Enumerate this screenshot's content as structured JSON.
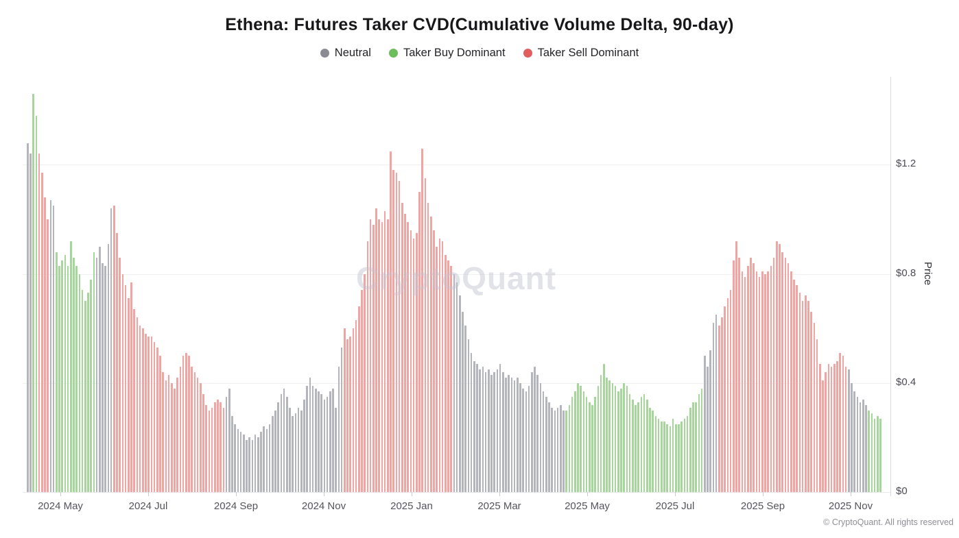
{
  "header": {
    "title": "Ethena: Futures Taker CVD(Cumulative Volume Delta, 90-day)"
  },
  "watermark": "CryptoQuant",
  "footer": {
    "copyright": "© CryptoQuant. All rights reserved"
  },
  "chart_data": {
    "type": "bar",
    "title": "Ethena: Futures Taker CVD(Cumulative Volume Delta, 90-day)",
    "xlabel": "",
    "ylabel": "Price",
    "ylim": [
      0,
      1.55
    ],
    "grid": true,
    "legend_position": "top",
    "legend": [
      {
        "key": "neutral",
        "label": "Neutral",
        "color": "#8b8b94"
      },
      {
        "key": "taker_buy_dominant",
        "label": "Taker Buy Dominant",
        "color": "#6cbd5b"
      },
      {
        "key": "taker_sell_dominant",
        "label": "Taker Sell Dominant",
        "color": "#e05e5d"
      }
    ],
    "bar_colors": {
      "neutral": "#b4b4bc",
      "taker_buy_dominant": "#a6d69b",
      "taker_sell_dominant": "#f1a5a3"
    },
    "y_ticks": [
      {
        "value": 0,
        "label": "$0"
      },
      {
        "value": 0.4,
        "label": "$0.4"
      },
      {
        "value": 0.8,
        "label": "$0.8"
      },
      {
        "value": 1.2,
        "label": "$1.2"
      }
    ],
    "x_ticks": [
      {
        "label": "2024 May",
        "x": 88
      },
      {
        "label": "2024 Jul",
        "x": 216
      },
      {
        "label": "2024 Sep",
        "x": 344
      },
      {
        "label": "2024 Nov",
        "x": 472
      },
      {
        "label": "2025 Jan",
        "x": 600
      },
      {
        "label": "2025 Mar",
        "x": 728
      },
      {
        "label": "2025 May",
        "x": 856
      },
      {
        "label": "2025 Jul",
        "x": 984
      },
      {
        "label": "2025 Sep",
        "x": 1112
      },
      {
        "label": "2025 Nov",
        "x": 1240
      }
    ],
    "segments": [
      {
        "dominance": "neutral",
        "values": [
          1.28,
          1.24
        ]
      },
      {
        "dominance": "taker_buy_dominant",
        "values": [
          1.46,
          1.38
        ]
      },
      {
        "dominance": "taker_sell_dominant",
        "values": [
          1.24,
          1.17,
          1.08,
          1.0
        ]
      },
      {
        "dominance": "neutral",
        "values": [
          1.07,
          1.05
        ]
      },
      {
        "dominance": "taker_buy_dominant",
        "values": [
          0.88,
          0.83,
          0.85,
          0.87,
          0.83,
          0.92,
          0.86,
          0.83,
          0.8,
          0.74,
          0.7,
          0.73,
          0.78,
          0.88
        ]
      },
      {
        "dominance": "neutral",
        "values": [
          0.86,
          0.9,
          0.84,
          0.83,
          0.91,
          1.04
        ]
      },
      {
        "dominance": "taker_sell_dominant",
        "values": [
          1.05,
          0.95,
          0.86,
          0.8,
          0.76,
          0.71,
          0.77,
          0.67,
          0.64,
          0.61,
          0.6,
          0.58,
          0.57,
          0.57,
          0.55,
          0.53,
          0.5,
          0.44,
          0.41,
          0.43,
          0.4,
          0.38,
          0.42,
          0.46,
          0.5,
          0.51,
          0.5,
          0.46,
          0.44,
          0.42,
          0.4,
          0.36,
          0.32,
          0.3,
          0.31,
          0.33,
          0.34,
          0.33,
          0.31
        ]
      },
      {
        "dominance": "neutral",
        "values": [
          0.35,
          0.38,
          0.28,
          0.25,
          0.23,
          0.22,
          0.21,
          0.19,
          0.2,
          0.19,
          0.21,
          0.2,
          0.22,
          0.24,
          0.23,
          0.25,
          0.28,
          0.3,
          0.33,
          0.36,
          0.38,
          0.35,
          0.31,
          0.28,
          0.29,
          0.31,
          0.3,
          0.34,
          0.39,
          0.42,
          0.39,
          0.38,
          0.37,
          0.36,
          0.34,
          0.35,
          0.37,
          0.38,
          0.31,
          0.46,
          0.53
        ]
      },
      {
        "dominance": "taker_sell_dominant",
        "values": [
          0.6,
          0.56,
          0.57,
          0.6,
          0.63,
          0.68,
          0.74,
          0.8,
          0.92,
          1.0,
          0.98,
          1.04,
          1.0,
          0.99,
          1.03,
          1.0,
          1.25,
          1.18,
          1.17,
          1.14,
          1.06,
          1.02,
          0.99,
          0.96,
          0.93,
          0.95,
          1.1,
          1.26,
          1.15,
          1.06,
          1.01,
          0.96,
          0.9,
          0.93,
          0.92,
          0.87,
          0.85,
          0.83
        ]
      },
      {
        "dominance": "neutral",
        "values": [
          0.8,
          0.77,
          0.72,
          0.66,
          0.61,
          0.56,
          0.51,
          0.48,
          0.47,
          0.45,
          0.46,
          0.44,
          0.45,
          0.43,
          0.44,
          0.45,
          0.47,
          0.44,
          0.42,
          0.43,
          0.42,
          0.41,
          0.42,
          0.4,
          0.38,
          0.37,
          0.39,
          0.44,
          0.46,
          0.43,
          0.4,
          0.37,
          0.35,
          0.33,
          0.31,
          0.3,
          0.31,
          0.32,
          0.3
        ]
      },
      {
        "dominance": "taker_buy_dominant",
        "values": [
          0.3,
          0.32,
          0.35,
          0.37,
          0.4,
          0.39,
          0.37,
          0.35,
          0.33,
          0.32,
          0.35,
          0.39,
          0.43,
          0.47,
          0.42,
          0.41,
          0.4,
          0.39,
          0.37,
          0.38,
          0.4,
          0.39,
          0.36,
          0.34,
          0.32,
          0.33,
          0.35,
          0.36,
          0.34,
          0.31,
          0.3,
          0.28,
          0.27,
          0.26,
          0.26,
          0.25,
          0.24,
          0.27,
          0.25,
          0.25,
          0.26,
          0.27,
          0.28,
          0.31,
          0.33,
          0.33,
          0.36,
          0.38
        ]
      },
      {
        "dominance": "neutral",
        "values": [
          0.5,
          0.46,
          0.52,
          0.62,
          0.65
        ]
      },
      {
        "dominance": "taker_sell_dominant",
        "values": [
          0.61,
          0.64,
          0.68,
          0.71,
          0.74,
          0.85,
          0.92,
          0.86,
          0.81,
          0.79,
          0.83,
          0.86,
          0.84,
          0.81,
          0.79,
          0.81,
          0.8,
          0.81,
          0.83,
          0.86,
          0.92,
          0.91,
          0.88,
          0.86,
          0.84,
          0.81,
          0.78,
          0.76,
          0.73,
          0.7,
          0.72,
          0.7,
          0.66,
          0.62,
          0.56,
          0.47,
          0.41,
          0.44,
          0.47,
          0.46,
          0.47,
          0.48,
          0.51,
          0.5,
          0.46
        ]
      },
      {
        "dominance": "neutral",
        "values": [
          0.45,
          0.4,
          0.37,
          0.35,
          0.33,
          0.34,
          0.32
        ]
      },
      {
        "dominance": "taker_buy_dominant",
        "values": [
          0.3,
          0.29,
          0.27,
          0.28,
          0.27
        ]
      }
    ]
  }
}
